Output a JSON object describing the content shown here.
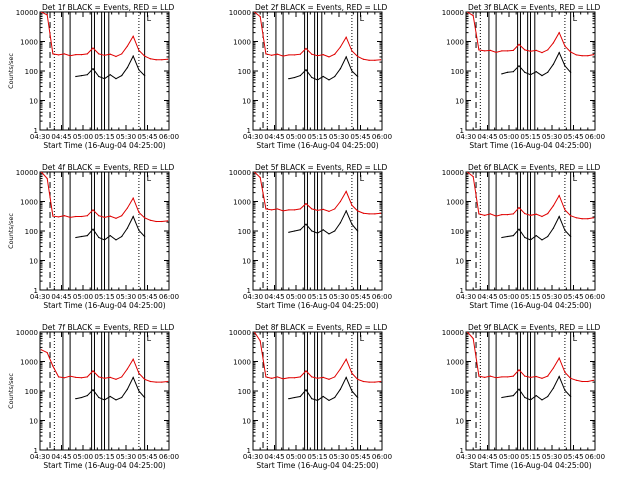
{
  "figure": {
    "colors": {
      "events": "#000000",
      "lld": "#e00000",
      "axes": "#000000",
      "background": "#ffffff"
    },
    "x_tick_labels": [
      "04:30",
      "04:45",
      "05:00",
      "05:15",
      "05:30",
      "05:45",
      "06:00"
    ],
    "y_tick_labels": [
      "1",
      "10",
      "100",
      "1000",
      "10000"
    ]
  },
  "chart_data": [
    {
      "type": "line",
      "panel": 1,
      "title": "Det 1f BLACK = Events, RED = LLD",
      "xlabel": "Start Time (16-Aug-04 04:25:00)",
      "ylabel": "Counts/sec",
      "yscale": "log",
      "ylim": [
        1,
        10000
      ],
      "xlim": [
        "04:30",
        "06:00"
      ],
      "marker": "L",
      "x": [
        "04:31",
        "04:35",
        "04:39",
        "04:43",
        "04:47",
        "04:51",
        "04:55",
        "04:59",
        "05:03",
        "05:07",
        "05:11",
        "05:15",
        "05:19",
        "05:23",
        "05:27",
        "05:31",
        "05:35",
        "05:39",
        "05:43",
        "05:47",
        "05:51",
        "05:55",
        "05:59"
      ],
      "series": [
        {
          "name": "Events",
          "values": [
            null,
            null,
            null,
            null,
            null,
            null,
            65,
            70,
            75,
            120,
            65,
            55,
            75,
            55,
            70,
            130,
            320,
            110,
            70,
            null,
            null,
            null,
            null
          ]
        },
        {
          "name": "LLD",
          "values": [
            10000,
            8000,
            380,
            350,
            380,
            330,
            360,
            360,
            380,
            600,
            380,
            340,
            370,
            310,
            380,
            700,
            1500,
            500,
            320,
            260,
            240,
            240,
            250
          ]
        }
      ],
      "vertical_lines": {
        "dashed": [
          "04:37"
        ],
        "dotted": [
          "04:40",
          "05:39"
        ],
        "solid": [
          "04:46",
          "04:51",
          "05:06",
          "05:08",
          "05:13",
          "05:15",
          "05:18",
          "05:43"
        ]
      }
    },
    {
      "type": "line",
      "panel": 2,
      "title": "Det 2f BLACK = Events, RED = LLD",
      "xlabel": "Start Time (16-Aug-04 04:25:00)",
      "ylabel": "",
      "yscale": "log",
      "ylim": [
        1,
        10000
      ],
      "xlim": [
        "04:30",
        "06:00"
      ],
      "marker": "L",
      "x": [
        "04:31",
        "04:35",
        "04:39",
        "04:43",
        "04:47",
        "04:51",
        "04:55",
        "04:59",
        "05:03",
        "05:07",
        "05:11",
        "05:15",
        "05:19",
        "05:23",
        "05:27",
        "05:31",
        "05:35",
        "05:39",
        "05:43",
        "05:47",
        "05:51",
        "05:55",
        "05:59"
      ],
      "series": [
        {
          "name": "Events",
          "values": [
            null,
            null,
            null,
            null,
            null,
            null,
            55,
            60,
            70,
            110,
            60,
            50,
            65,
            50,
            65,
            120,
            300,
            100,
            65,
            null,
            null,
            null,
            null
          ]
        },
        {
          "name": "LLD",
          "values": [
            10000,
            7000,
            380,
            340,
            370,
            320,
            350,
            350,
            370,
            580,
            370,
            330,
            360,
            300,
            370,
            650,
            1400,
            480,
            310,
            250,
            230,
            230,
            240
          ]
        }
      ],
      "vertical_lines": {
        "dashed": [
          "04:37"
        ],
        "dotted": [
          "04:40",
          "05:39"
        ],
        "solid": [
          "04:46",
          "04:51",
          "05:06",
          "05:08",
          "05:13",
          "05:15",
          "05:18",
          "05:43"
        ]
      }
    },
    {
      "type": "line",
      "panel": 3,
      "title": "Det 3f BLACK = Events, RED = LLD",
      "xlabel": "Start Time (16-Aug-04 04:25:00)",
      "ylabel": "",
      "yscale": "log",
      "ylim": [
        1,
        10000
      ],
      "xlim": [
        "04:30",
        "06:00"
      ],
      "marker": "L",
      "x": [
        "04:31",
        "04:35",
        "04:39",
        "04:43",
        "04:47",
        "04:51",
        "04:55",
        "04:59",
        "05:03",
        "05:07",
        "05:11",
        "05:15",
        "05:19",
        "05:23",
        "05:27",
        "05:31",
        "05:35",
        "05:39",
        "05:43",
        "05:47",
        "05:51",
        "05:55",
        "05:59"
      ],
      "series": [
        {
          "name": "Events",
          "values": [
            null,
            null,
            null,
            null,
            null,
            null,
            80,
            90,
            95,
            150,
            90,
            75,
            95,
            70,
            90,
            170,
            420,
            150,
            90,
            null,
            null,
            null,
            null
          ]
        },
        {
          "name": "LLD",
          "values": [
            10000,
            7500,
            520,
            480,
            500,
            430,
            480,
            480,
            500,
            800,
            520,
            470,
            500,
            420,
            520,
            900,
            2000,
            700,
            440,
            350,
            330,
            330,
            360
          ]
        }
      ],
      "vertical_lines": {
        "dashed": [
          "04:37"
        ],
        "dotted": [
          "04:40",
          "05:39"
        ],
        "solid": [
          "04:46",
          "04:51",
          "05:06",
          "05:08",
          "05:13",
          "05:15",
          "05:18",
          "05:43"
        ]
      }
    },
    {
      "type": "line",
      "panel": 4,
      "title": "Det 4f BLACK = Events, RED = LLD",
      "xlabel": "Start Time (16-Aug-04 04:25:00)",
      "ylabel": "Counts/sec",
      "yscale": "log",
      "ylim": [
        1,
        10000
      ],
      "xlim": [
        "04:30",
        "06:00"
      ],
      "marker": "L",
      "x": [
        "04:31",
        "04:35",
        "04:39",
        "04:43",
        "04:47",
        "04:51",
        "04:55",
        "04:59",
        "05:03",
        "05:07",
        "05:11",
        "05:15",
        "05:19",
        "05:23",
        "05:27",
        "05:31",
        "05:35",
        "05:39",
        "05:43",
        "05:47",
        "05:51",
        "05:55",
        "05:59"
      ],
      "series": [
        {
          "name": "Events",
          "values": [
            null,
            null,
            null,
            null,
            null,
            null,
            60,
            65,
            70,
            115,
            60,
            50,
            70,
            50,
            65,
            125,
            310,
            105,
            65,
            null,
            null,
            null,
            null
          ]
        },
        {
          "name": "LLD",
          "values": [
            10000,
            6000,
            320,
            300,
            330,
            290,
            310,
            310,
            330,
            520,
            330,
            290,
            320,
            270,
            330,
            600,
            1300,
            430,
            280,
            230,
            210,
            210,
            220
          ]
        }
      ],
      "vertical_lines": {
        "dashed": [
          "04:37"
        ],
        "dotted": [
          "04:40",
          "05:39"
        ],
        "solid": [
          "04:46",
          "04:51",
          "05:06",
          "05:08",
          "05:13",
          "05:15",
          "05:18",
          "05:43"
        ]
      }
    },
    {
      "type": "line",
      "panel": 5,
      "title": "Det 5f BLACK = Events, RED = LLD",
      "xlabel": "Start Time (16-Aug-04 04:25:00)",
      "ylabel": "",
      "yscale": "log",
      "ylim": [
        1,
        10000
      ],
      "xlim": [
        "04:30",
        "06:00"
      ],
      "marker": "L",
      "x": [
        "04:31",
        "04:35",
        "04:39",
        "04:43",
        "04:47",
        "04:51",
        "04:55",
        "04:59",
        "05:03",
        "05:07",
        "05:11",
        "05:15",
        "05:19",
        "05:23",
        "05:27",
        "05:31",
        "05:35",
        "05:39",
        "05:43",
        "05:47",
        "05:51",
        "05:55",
        "05:59"
      ],
      "series": [
        {
          "name": "Events",
          "values": [
            null,
            null,
            null,
            null,
            null,
            null,
            90,
            100,
            110,
            170,
            100,
            85,
            110,
            80,
            100,
            190,
            480,
            170,
            100,
            null,
            null,
            null,
            null
          ]
        },
        {
          "name": "LLD",
          "values": [
            10000,
            6500,
            560,
            520,
            560,
            480,
            520,
            520,
            560,
            850,
            560,
            500,
            540,
            460,
            560,
            1000,
            2200,
            750,
            480,
            400,
            380,
            380,
            400
          ]
        }
      ],
      "vertical_lines": {
        "dashed": [
          "04:37"
        ],
        "dotted": [
          "04:40",
          "05:39"
        ],
        "solid": [
          "04:46",
          "04:51",
          "05:06",
          "05:08",
          "05:13",
          "05:15",
          "05:18",
          "05:43"
        ]
      }
    },
    {
      "type": "line",
      "panel": 6,
      "title": "Det 6f BLACK = Events, RED = LLD",
      "xlabel": "Start Time (16-Aug-04 04:25:00)",
      "ylabel": "",
      "yscale": "log",
      "ylim": [
        1,
        10000
      ],
      "xlim": [
        "04:30",
        "06:00"
      ],
      "marker": "L",
      "x": [
        "04:31",
        "04:35",
        "04:39",
        "04:43",
        "04:47",
        "04:51",
        "04:55",
        "04:59",
        "05:03",
        "05:07",
        "05:11",
        "05:15",
        "05:19",
        "05:23",
        "05:27",
        "05:31",
        "05:35",
        "05:39",
        "05:43",
        "05:47",
        "05:51",
        "05:55",
        "05:59"
      ],
      "series": [
        {
          "name": "Events",
          "values": [
            null,
            null,
            null,
            null,
            null,
            null,
            60,
            65,
            70,
            115,
            60,
            50,
            70,
            50,
            65,
            125,
            310,
            105,
            65,
            null,
            null,
            null,
            null
          ]
        },
        {
          "name": "LLD",
          "values": [
            10000,
            7000,
            380,
            340,
            380,
            320,
            360,
            360,
            380,
            620,
            390,
            340,
            370,
            310,
            390,
            720,
            1600,
            520,
            330,
            280,
            260,
            260,
            280
          ]
        }
      ],
      "vertical_lines": {
        "dashed": [
          "04:37"
        ],
        "dotted": [
          "04:40",
          "05:39"
        ],
        "solid": [
          "04:46",
          "04:51",
          "05:06",
          "05:08",
          "05:13",
          "05:15",
          "05:18",
          "05:43"
        ]
      }
    },
    {
      "type": "line",
      "panel": 7,
      "title": "Det 7f BLACK = Events, RED = LLD",
      "xlabel": "Start Time (16-Aug-04 04:25:00)",
      "ylabel": "Counts/sec",
      "yscale": "log",
      "ylim": [
        1,
        10000
      ],
      "xlim": [
        "04:30",
        "06:00"
      ],
      "marker": "L",
      "x": [
        "04:31",
        "04:35",
        "04:39",
        "04:43",
        "04:47",
        "04:51",
        "04:55",
        "04:59",
        "05:03",
        "05:07",
        "05:11",
        "05:15",
        "05:19",
        "05:23",
        "05:27",
        "05:31",
        "05:35",
        "05:39",
        "05:43",
        "05:47",
        "05:51",
        "05:55",
        "05:59"
      ],
      "series": [
        {
          "name": "Events",
          "values": [
            null,
            null,
            null,
            null,
            null,
            null,
            55,
            60,
            70,
            110,
            60,
            50,
            65,
            50,
            60,
            115,
            290,
            100,
            60,
            null,
            null,
            null,
            null
          ]
        },
        {
          "name": "LLD",
          "values": [
            2500,
            2000,
            700,
            300,
            280,
            320,
            290,
            280,
            300,
            480,
            300,
            270,
            290,
            250,
            300,
            560,
            1200,
            400,
            250,
            210,
            200,
            200,
            210
          ]
        }
      ],
      "vertical_lines": {
        "dashed": [
          "04:37"
        ],
        "dotted": [
          "04:40",
          "05:39"
        ],
        "solid": [
          "04:46",
          "04:51",
          "05:06",
          "05:08",
          "05:13",
          "05:15",
          "05:18",
          "05:43"
        ]
      }
    },
    {
      "type": "line",
      "panel": 8,
      "title": "Det 8f BLACK = Events, RED = LLD",
      "xlabel": "Start Time (16-Aug-04 04:25:00)",
      "ylabel": "",
      "yscale": "log",
      "ylim": [
        1,
        10000
      ],
      "xlim": [
        "04:30",
        "06:00"
      ],
      "marker": "L",
      "x": [
        "04:31",
        "04:35",
        "04:39",
        "04:43",
        "04:47",
        "04:51",
        "04:55",
        "04:59",
        "05:03",
        "05:07",
        "05:11",
        "05:15",
        "05:19",
        "05:23",
        "05:27",
        "05:31",
        "05:35",
        "05:39",
        "05:43",
        "05:47",
        "05:51",
        "05:55",
        "05:59"
      ],
      "series": [
        {
          "name": "Events",
          "values": [
            null,
            null,
            null,
            null,
            null,
            null,
            55,
            60,
            65,
            110,
            55,
            48,
            65,
            48,
            60,
            115,
            290,
            100,
            60,
            null,
            null,
            null,
            null
          ]
        },
        {
          "name": "LLD",
          "values": [
            10000,
            5000,
            300,
            270,
            300,
            260,
            280,
            280,
            300,
            480,
            300,
            270,
            290,
            250,
            300,
            560,
            1200,
            400,
            250,
            210,
            200,
            200,
            210
          ]
        }
      ],
      "vertical_lines": {
        "dashed": [
          "04:37"
        ],
        "dotted": [
          "04:40",
          "05:39"
        ],
        "solid": [
          "04:46",
          "04:51",
          "05:06",
          "05:08",
          "05:13",
          "05:15",
          "05:18",
          "05:43"
        ]
      }
    },
    {
      "type": "line",
      "panel": 9,
      "title": "Det 9f BLACK = Events, RED = LLD",
      "xlabel": "Start Time (16-Aug-04 04:25:00)",
      "ylabel": "",
      "yscale": "log",
      "ylim": [
        1,
        10000
      ],
      "xlim": [
        "04:30",
        "06:00"
      ],
      "marker": "L",
      "x": [
        "04:31",
        "04:35",
        "04:39",
        "04:43",
        "04:47",
        "04:51",
        "04:55",
        "04:59",
        "05:03",
        "05:07",
        "05:11",
        "05:15",
        "05:19",
        "05:23",
        "05:27",
        "05:31",
        "05:35",
        "05:39",
        "05:43",
        "05:47",
        "05:51",
        "05:55",
        "05:59"
      ],
      "series": [
        {
          "name": "Events",
          "values": [
            null,
            null,
            null,
            null,
            null,
            null,
            60,
            65,
            70,
            115,
            60,
            50,
            70,
            50,
            65,
            125,
            310,
            105,
            65,
            null,
            null,
            null,
            null
          ]
        },
        {
          "name": "LLD",
          "values": [
            10000,
            6000,
            320,
            290,
            320,
            280,
            300,
            300,
            320,
            520,
            320,
            290,
            310,
            270,
            320,
            600,
            1300,
            430,
            270,
            230,
            210,
            210,
            230
          ]
        }
      ],
      "vertical_lines": {
        "dashed": [
          "04:37"
        ],
        "dotted": [
          "04:40",
          "05:39"
        ],
        "solid": [
          "04:46",
          "04:51",
          "05:06",
          "05:08",
          "05:13",
          "05:15",
          "05:18",
          "05:43"
        ]
      }
    }
  ]
}
